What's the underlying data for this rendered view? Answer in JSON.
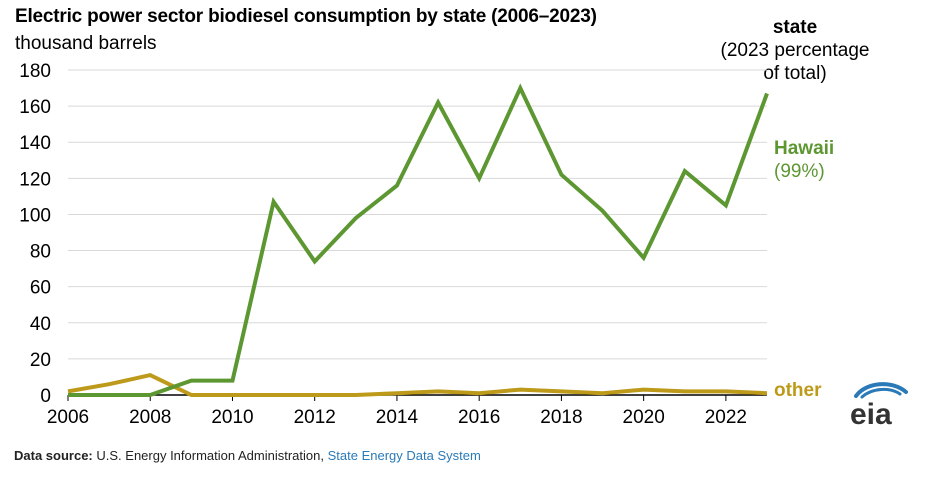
{
  "header": {
    "title": "Electric power sector biodiesel consumption by state (2006–2023)",
    "unit": "thousand barrels"
  },
  "legend": {
    "title": "state",
    "subtitle_line1": "(2023 percentage",
    "subtitle_line2": "of total)",
    "hawaii_name": "Hawaii",
    "hawaii_share": "(99%)",
    "other_name": "other"
  },
  "source": {
    "label": "Data source:",
    "text": "U.S. Energy Information Administration,",
    "link": "State Energy Data System"
  },
  "logo": {
    "text": "eia"
  },
  "colors": {
    "hawaii": "#5d9732",
    "other": "#bd9a1a",
    "grid": "#d9d9d9",
    "axis": "#000000"
  },
  "chart_data": {
    "type": "line",
    "title": "Electric power sector biodiesel consumption by state (2006–2023)",
    "ylabel": "thousand barrels",
    "x": [
      2006,
      2007,
      2008,
      2009,
      2010,
      2011,
      2012,
      2013,
      2014,
      2015,
      2016,
      2017,
      2018,
      2019,
      2020,
      2021,
      2022,
      2023
    ],
    "xlim": [
      2006,
      2023
    ],
    "ylim": [
      0,
      180
    ],
    "xticks": [
      2006,
      2008,
      2010,
      2012,
      2014,
      2016,
      2018,
      2020,
      2022
    ],
    "yticks": [
      0,
      20,
      40,
      60,
      80,
      100,
      120,
      140,
      160,
      180
    ],
    "grid": "horizontal",
    "series": [
      {
        "name": "Hawaii",
        "values": [
          0,
          0,
          0,
          8,
          8,
          107,
          74,
          98,
          116,
          162,
          120,
          170,
          122,
          102,
          76,
          124,
          105,
          167
        ]
      },
      {
        "name": "other",
        "values": [
          2,
          6,
          11,
          0,
          0,
          0,
          0,
          0,
          1,
          2,
          1,
          3,
          2,
          1,
          3,
          2,
          2,
          1
        ]
      }
    ]
  }
}
